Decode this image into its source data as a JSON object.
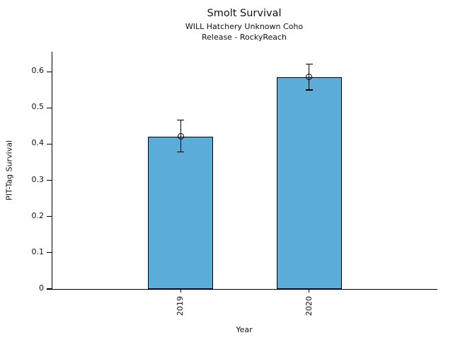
{
  "chart_data": {
    "type": "bar",
    "title": "Smolt Survival",
    "subtitle": [
      "WILL Hatchery Unknown Coho",
      "Release - RockyReach"
    ],
    "xlabel": "Year",
    "ylabel": "PIT-Tag Survival",
    "categories": [
      "2019",
      "2020"
    ],
    "values": [
      0.42,
      0.585
    ],
    "error_bars": {
      "low": [
        0.378,
        0.549
      ],
      "high": [
        0.466,
        0.621
      ]
    },
    "markers": "open-circle",
    "y_ticks": [
      0,
      0.1,
      0.2,
      0.3,
      0.4,
      0.5,
      0.6
    ],
    "y_tick_labels": [
      "0",
      "0.1",
      "0.2",
      "0.3",
      "0.4",
      "0.5",
      "0.6"
    ],
    "ylim": [
      0,
      0.655
    ],
    "grid": false,
    "legend": false,
    "bar_color": "#5BACD8",
    "bar_edge_color": "#000000",
    "error_color": "#000000",
    "text_color": "#111111",
    "background_color": "#FFFFFF"
  }
}
